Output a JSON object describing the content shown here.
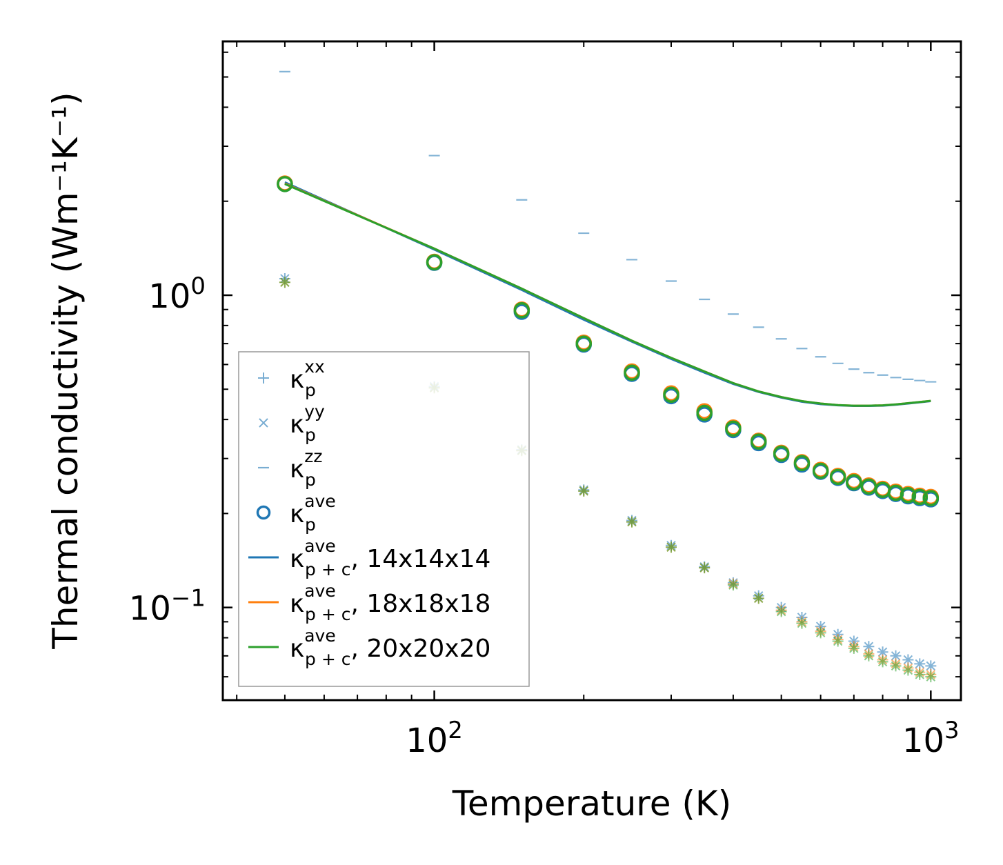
{
  "chart_data": {
    "type": "scatter",
    "xscale": "log",
    "yscale": "log",
    "xlabel": "Temperature (K)",
    "ylabel": "Thermal conductivity (Wm⁻¹K⁻¹)",
    "xlim": [
      37.5,
      1150
    ],
    "ylim": [
      0.0505,
      6.5
    ],
    "x_ticks": [
      {
        "value": 100,
        "base": "10",
        "exp": "2"
      },
      {
        "value": 1000,
        "base": "10",
        "exp": "3"
      }
    ],
    "y_ticks": [
      {
        "value": 0.1,
        "base": "10",
        "exp": "−1"
      },
      {
        "value": 1,
        "base": "10",
        "exp": "0"
      }
    ],
    "colors": {
      "blue": "#1f77b4",
      "orange": "#ff7f0e",
      "green": "#2ca02c"
    },
    "x": [
      50,
      100,
      150,
      200,
      250,
      300,
      350,
      400,
      450,
      500,
      550,
      600,
      650,
      700,
      750,
      800,
      850,
      900,
      950,
      1000
    ],
    "series": [
      {
        "name": "κp^xx / κp^yy (14x14x14)",
        "marker": "plus+x",
        "color": "#1f77b4",
        "values": [
          1.13,
          0.51,
          0.32,
          0.238,
          0.19,
          0.158,
          0.135,
          0.12,
          0.109,
          0.1,
          0.093,
          0.087,
          0.082,
          0.078,
          0.075,
          0.072,
          0.07,
          0.068,
          0.066,
          0.065
        ]
      },
      {
        "name": "κp^xx / κp^yy (18x18x18)",
        "marker": "plus+x",
        "color": "#ff7f0e",
        "values": [
          1.1,
          0.505,
          0.318,
          0.236,
          0.188,
          0.156,
          0.134,
          0.119,
          0.107,
          0.098,
          0.09,
          0.084,
          0.079,
          0.075,
          0.071,
          0.068,
          0.066,
          0.064,
          0.062,
          0.061
        ]
      },
      {
        "name": "κp^xx / κp^yy (20x20x20)",
        "marker": "plus+x",
        "color": "#2ca02c",
        "values": [
          1.1,
          0.505,
          0.318,
          0.236,
          0.188,
          0.156,
          0.134,
          0.118,
          0.107,
          0.097,
          0.089,
          0.083,
          0.078,
          0.074,
          0.07,
          0.067,
          0.065,
          0.063,
          0.061,
          0.06
        ]
      },
      {
        "name": "κp^zz",
        "marker": "hline",
        "color": "#1f77b4",
        "values": [
          5.2,
          2.8,
          2.02,
          1.58,
          1.3,
          1.11,
          0.97,
          0.87,
          0.79,
          0.725,
          0.675,
          0.635,
          0.605,
          0.58,
          0.565,
          0.555,
          0.545,
          0.538,
          0.533,
          0.528
        ]
      },
      {
        "name": "κp^ave (14x14x14)",
        "marker": "circle",
        "color": "#1f77b4",
        "values": [
          2.27,
          1.27,
          0.885,
          0.695,
          0.56,
          0.475,
          0.415,
          0.37,
          0.336,
          0.308,
          0.287,
          0.272,
          0.26,
          0.25,
          0.242,
          0.236,
          0.231,
          0.227,
          0.224,
          0.222
        ]
      },
      {
        "name": "κp^ave (18x18x18)",
        "marker": "circle",
        "color": "#ff7f0e",
        "values": [
          2.28,
          1.28,
          0.9,
          0.705,
          0.57,
          0.485,
          0.425,
          0.377,
          0.342,
          0.313,
          0.292,
          0.276,
          0.264,
          0.254,
          0.246,
          0.24,
          0.235,
          0.231,
          0.228,
          0.226
        ]
      },
      {
        "name": "κp^ave (20x20x20)",
        "marker": "circle",
        "color": "#2ca02c",
        "values": [
          2.27,
          1.275,
          0.895,
          0.7,
          0.565,
          0.48,
          0.42,
          0.374,
          0.34,
          0.311,
          0.29,
          0.274,
          0.262,
          0.252,
          0.244,
          0.238,
          0.233,
          0.229,
          0.226,
          0.224
        ]
      },
      {
        "name": "κp+c^ave, 14x14x14",
        "marker": "line",
        "color": "#1f77b4",
        "values": [
          2.3,
          1.4,
          1.04,
          0.835,
          0.71,
          0.625,
          0.565,
          0.52,
          0.49,
          0.47,
          0.456,
          0.448,
          0.444,
          0.442,
          0.442,
          0.443,
          0.446,
          0.45,
          0.454,
          0.458
        ]
      },
      {
        "name": "κp+c^ave, 18x18x18",
        "marker": "line",
        "color": "#ff7f0e",
        "values": [
          2.28,
          1.41,
          1.05,
          0.845,
          0.715,
          0.63,
          0.57,
          0.523,
          0.492,
          0.472,
          0.458,
          0.45,
          0.445,
          0.443,
          0.443,
          0.444,
          0.447,
          0.451,
          0.455,
          0.459
        ]
      },
      {
        "name": "κp+c^ave, 20x20x20",
        "marker": "line",
        "color": "#2ca02c",
        "values": [
          2.27,
          1.41,
          1.05,
          0.845,
          0.715,
          0.63,
          0.57,
          0.523,
          0.492,
          0.472,
          0.458,
          0.45,
          0.445,
          0.443,
          0.443,
          0.444,
          0.447,
          0.451,
          0.455,
          0.459
        ]
      }
    ],
    "legend": {
      "placement": "lower-left",
      "entries": [
        {
          "symbol": "κ",
          "sub": "p",
          "sup": "xx",
          "suffix": "",
          "marker": "plus",
          "color": "#1f77b4"
        },
        {
          "symbol": "κ",
          "sub": "p",
          "sup": "yy",
          "suffix": "",
          "marker": "x",
          "color": "#1f77b4"
        },
        {
          "symbol": "κ",
          "sub": "p",
          "sup": "zz",
          "suffix": "",
          "marker": "hline",
          "color": "#1f77b4"
        },
        {
          "symbol": "κ",
          "sub": "p",
          "sup": "ave",
          "suffix": "",
          "marker": "circle",
          "color": "#1f77b4"
        },
        {
          "symbol": "κ",
          "sub": "p + c",
          "sup": "ave",
          "suffix": ", 14x14x14",
          "marker": "line",
          "color": "#1f77b4"
        },
        {
          "symbol": "κ",
          "sub": "p + c",
          "sup": "ave",
          "suffix": ", 18x18x18",
          "marker": "line",
          "color": "#ff7f0e"
        },
        {
          "symbol": "κ",
          "sub": "p + c",
          "sup": "ave",
          "suffix": ", 20x20x20",
          "marker": "line",
          "color": "#2ca02c"
        }
      ]
    }
  }
}
